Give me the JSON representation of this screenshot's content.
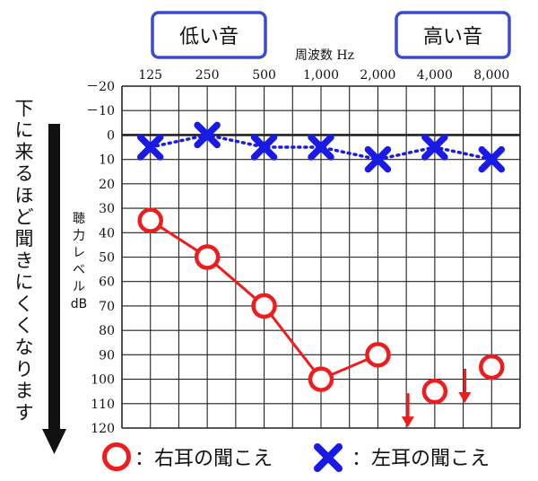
{
  "badges": {
    "low": "低い音",
    "high": "高い音"
  },
  "side_note": "下に来るほど聞きにくくなります",
  "legend": {
    "right": "：右耳の聞こえ",
    "left": "：左耳の聞こえ"
  },
  "colors": {
    "right_ear": "#ee1c1c",
    "left_ear": "#1a1ae6",
    "badge_border": "#3c4ccc",
    "grid": "#222222"
  },
  "chart_data": {
    "type": "line",
    "xlabel": "周波数 Hz",
    "ylabel": [
      "聴",
      "力",
      "レ",
      "ベ",
      "ル",
      "dB"
    ],
    "categories": [
      "125",
      "250",
      "500",
      "1,000",
      "2,000",
      "4,000",
      "8,000"
    ],
    "y_ticks": [
      "－20",
      "－10",
      "0",
      "10",
      "20",
      "30",
      "40",
      "50",
      "60",
      "70",
      "80",
      "90",
      "100",
      "110",
      "120"
    ],
    "y_tick_values": [
      -20,
      -10,
      0,
      10,
      20,
      30,
      40,
      50,
      60,
      70,
      80,
      90,
      100,
      110,
      120
    ],
    "ylim": [
      -20,
      120
    ],
    "y_inverted": true,
    "grid": true,
    "series": [
      {
        "name": "右耳の聞こえ",
        "marker": "circle",
        "line": "solid",
        "color": "#ee1c1c",
        "values": [
          35,
          50,
          70,
          100,
          90,
          105,
          95
        ],
        "connected_points": 5,
        "scale_out": [
          false,
          false,
          false,
          false,
          false,
          true,
          true
        ]
      },
      {
        "name": "左耳の聞こえ",
        "marker": "x",
        "line": "dotted",
        "color": "#1a1ae6",
        "values": [
          5,
          0,
          5,
          5,
          10,
          5,
          10
        ]
      }
    ]
  }
}
